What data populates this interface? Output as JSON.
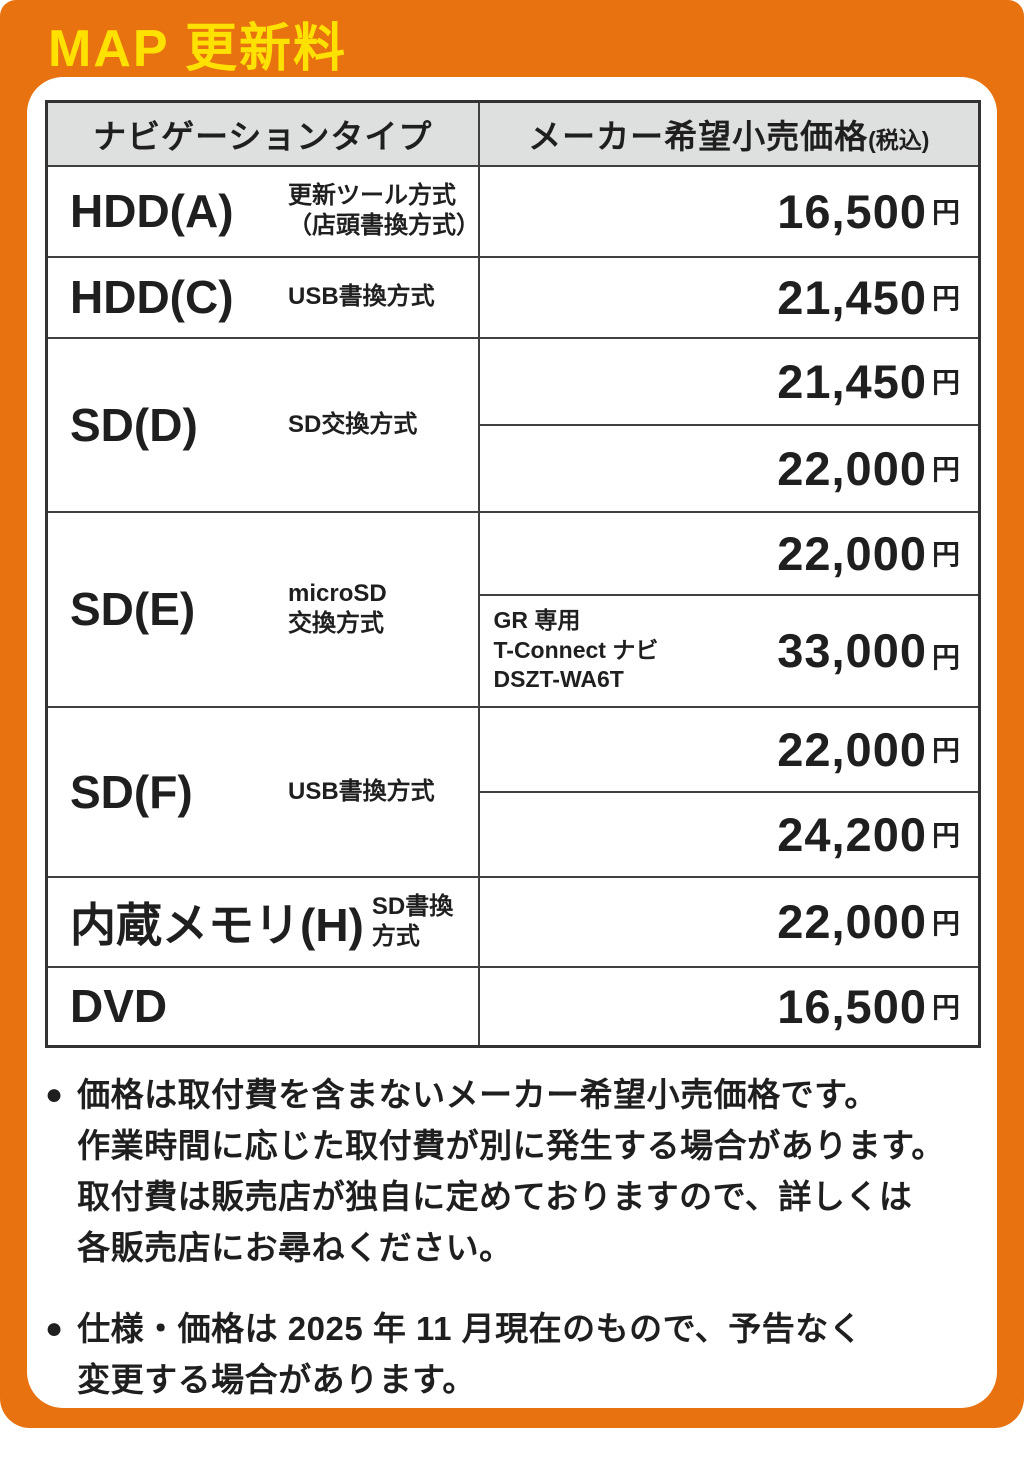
{
  "title": "MAP 更新料",
  "colors": {
    "frame_orange": "#E8720F",
    "title_yellow": "#FFE100",
    "header_gray": "#DEDFDF",
    "border": "#404040"
  },
  "table": {
    "headers": {
      "type": "ナビゲーションタイプ",
      "price": "メーカー希望小売価格",
      "price_note": "(税込)"
    },
    "rows": [
      {
        "type": "HDD(A)",
        "method": "更新ツール方式\n（店頭書換方式）",
        "amount": "16,500",
        "unit": "円"
      },
      {
        "type": "HDD(C)",
        "method": "USB書換方式",
        "amount": "21,450",
        "unit": "円"
      },
      {
        "type": "SD(D)",
        "method": "SD交換方式",
        "amount": "21,450",
        "unit": "円",
        "amount2": "22,000",
        "unit2": "円"
      },
      {
        "type": "SD(E)",
        "method": "microSD\n交換方式",
        "amount": "22,000",
        "unit": "円",
        "note2": "GR 専用\nT-Connect ナビ\nDSZT-WA6T",
        "amount2": "33,000",
        "unit2": "円"
      },
      {
        "type": "SD(F)",
        "method": "USB書換方式",
        "amount": "22,000",
        "unit": "円",
        "amount2": "24,200",
        "unit2": "円"
      },
      {
        "type": "内蔵メモリ(H)",
        "method": "SD書換\n方式",
        "amount": "22,000",
        "unit": "円"
      },
      {
        "type": "DVD",
        "method": "",
        "amount": "16,500",
        "unit": "円"
      }
    ]
  },
  "footnotes": [
    {
      "bullet": "●",
      "text": "価格は取付費を含まないメーカー希望小売価格です。\n作業時間に応じた取付費が別に発生する場合があります。\n取付費は販売店が独自に定めておりますので、詳しくは\n各販売店にお尋ねください。"
    },
    {
      "bullet": "●",
      "text": "仕様・価格は 2025 年 11 月現在のもので、予告なく\n変更する場合があります。"
    }
  ]
}
